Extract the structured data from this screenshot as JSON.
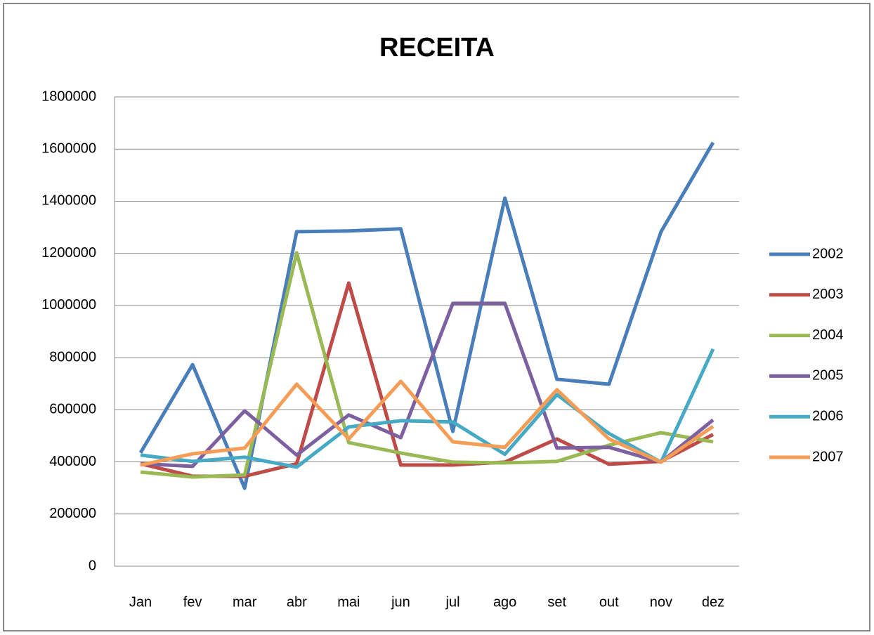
{
  "chart_data": {
    "type": "line",
    "title": "RECEITA",
    "categories": [
      "Jan",
      "fev",
      "mar",
      "abr",
      "mai",
      "jun",
      "jul",
      "ago",
      "set",
      "out",
      "nov",
      "dez"
    ],
    "series": [
      {
        "name": "2002",
        "color": "#4a7ebb",
        "values": [
          435000,
          773000,
          299000,
          1283000,
          1286000,
          1294000,
          517000,
          1412000,
          717000,
          698000,
          1283000,
          1625000
        ]
      },
      {
        "name": "2003",
        "color": "#be4b48",
        "values": [
          393000,
          345000,
          345000,
          393000,
          1086000,
          388000,
          388000,
          399000,
          488000,
          391000,
          402000,
          505000
        ]
      },
      {
        "name": "2004",
        "color": "#98b954",
        "values": [
          361000,
          342000,
          350000,
          1202000,
          474000,
          434000,
          399000,
          396000,
          402000,
          464000,
          512000,
          477000
        ]
      },
      {
        "name": "2005",
        "color": "#7d60a0",
        "values": [
          393000,
          383000,
          596000,
          426000,
          580000,
          493000,
          1008000,
          1008000,
          453000,
          456000,
          399000,
          561000
        ]
      },
      {
        "name": "2006",
        "color": "#46aac5",
        "values": [
          426000,
          402000,
          418000,
          380000,
          534000,
          558000,
          553000,
          429000,
          658000,
          509000,
          399000,
          833000
        ]
      },
      {
        "name": "2007",
        "color": "#f59d56",
        "values": [
          388000,
          431000,
          453000,
          698000,
          488000,
          709000,
          477000,
          456000,
          677000,
          488000,
          399000,
          536000
        ]
      }
    ],
    "ylim": [
      0,
      1800000
    ],
    "yticks": [
      0,
      200000,
      400000,
      600000,
      800000,
      1000000,
      1200000,
      1400000,
      1600000,
      1800000
    ],
    "grid": true,
    "legend": "right"
  }
}
